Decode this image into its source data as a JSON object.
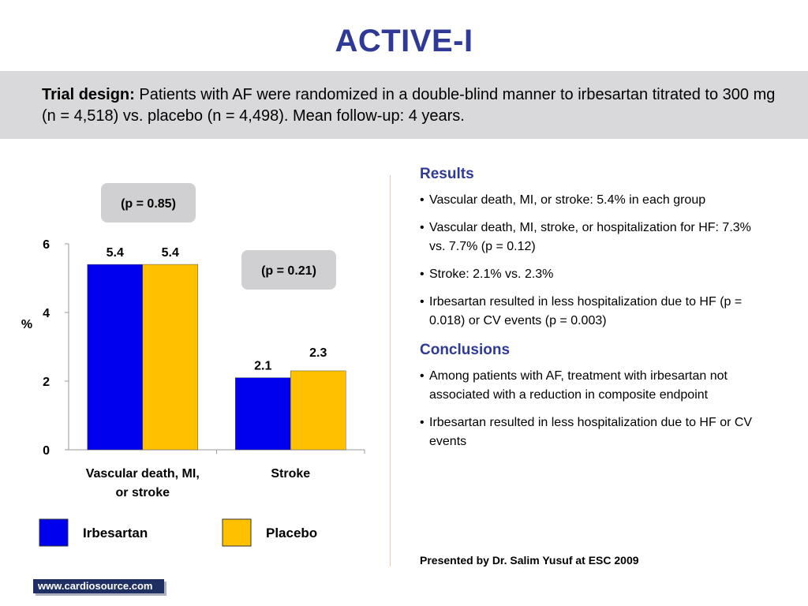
{
  "title": "ACTIVE-I",
  "trial_design": {
    "label": "Trial design:",
    "text": "Patients with AF were randomized in a double-blind manner to irbesartan titrated to 300 mg (n = 4,518) vs. placebo (n = 4,498). Mean follow-up: 4 years."
  },
  "colors": {
    "irbesartan": "#0000ee",
    "placebo": "#ffc000",
    "accent": "#2e3a96",
    "callout": "#d0d0d2"
  },
  "chart_data": {
    "type": "bar",
    "categories": [
      "Vascular death, MI, or stroke",
      "Stroke"
    ],
    "category_lines": [
      [
        "Vascular death, MI,",
        "or stroke"
      ],
      [
        "Stroke"
      ]
    ],
    "series": [
      {
        "name": "Irbesartan",
        "values": [
          5.4,
          2.1
        ]
      },
      {
        "name": "Placebo",
        "values": [
          5.4,
          2.3
        ]
      }
    ],
    "value_labels": [
      [
        "5.4",
        "2.1"
      ],
      [
        "5.4",
        "2.3"
      ]
    ],
    "ylabel": "%",
    "ylim": [
      0,
      6
    ],
    "yticks": [
      "0",
      "2",
      "4",
      "6"
    ],
    "annotations": [
      "(p = 0.85)",
      "(p = 0.21)"
    ],
    "legend_placement": "bottom",
    "grid": false
  },
  "results": {
    "heading": "Results",
    "items": [
      "Vascular death, MI, or stroke: 5.4% in each group",
      "Vascular death, MI, stroke, or hospitalization for HF: 7.3% vs. 7.7% (p = 0.12)",
      "Stroke: 2.1% vs. 2.3%",
      "Irbesartan resulted in less hospitalization due to HF (p = 0.018) or CV events (p = 0.003)"
    ]
  },
  "conclusions": {
    "heading": "Conclusions",
    "items": [
      "Among patients with AF, treatment with irbesartan not associated with a reduction in composite endpoint",
      "Irbesartan resulted in less hospitalization due to HF or CV events"
    ]
  },
  "presented_by": "Presented by Dr. Salim Yusuf at ESC 2009",
  "footer_url": "www.cardiosource.com"
}
